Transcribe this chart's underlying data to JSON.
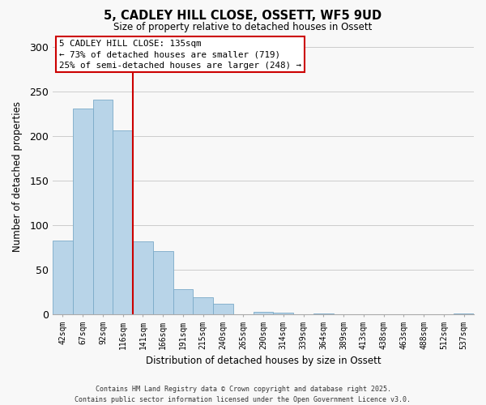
{
  "title": "5, CADLEY HILL CLOSE, OSSETT, WF5 9UD",
  "subtitle": "Size of property relative to detached houses in Ossett",
  "xlabel": "Distribution of detached houses by size in Ossett",
  "ylabel": "Number of detached properties",
  "bar_color": "#b8d4e8",
  "bar_edge_color": "#7aaac8",
  "categories": [
    "42sqm",
    "67sqm",
    "92sqm",
    "116sqm",
    "141sqm",
    "166sqm",
    "191sqm",
    "215sqm",
    "240sqm",
    "265sqm",
    "290sqm",
    "314sqm",
    "339sqm",
    "364sqm",
    "389sqm",
    "413sqm",
    "438sqm",
    "463sqm",
    "488sqm",
    "512sqm",
    "537sqm"
  ],
  "values": [
    83,
    231,
    241,
    207,
    82,
    71,
    28,
    19,
    12,
    0,
    3,
    2,
    0,
    1,
    0,
    0,
    0,
    0,
    0,
    0,
    1
  ],
  "ylim": [
    0,
    310
  ],
  "yticks": [
    0,
    50,
    100,
    150,
    200,
    250,
    300
  ],
  "vline_pos": 3.5,
  "vline_color": "#cc0000",
  "annotation_title": "5 CADLEY HILL CLOSE: 135sqm",
  "annotation_line1": "← 73% of detached houses are smaller (719)",
  "annotation_line2": "25% of semi-detached houses are larger (248) →",
  "footer_line1": "Contains HM Land Registry data © Crown copyright and database right 2025.",
  "footer_line2": "Contains public sector information licensed under the Open Government Licence v3.0.",
  "background_color": "#f8f8f8",
  "grid_color": "#cccccc"
}
